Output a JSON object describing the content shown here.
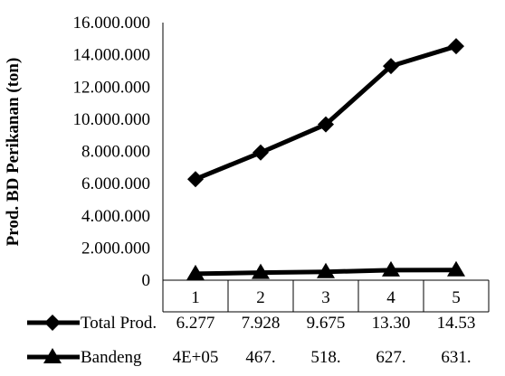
{
  "chart_data": {
    "type": "line",
    "title": "",
    "xlabel": "",
    "ylabel": "Prod. BD Perikanan (ton)",
    "ylim": [
      0,
      16000000
    ],
    "y_tick_labels": [
      "0",
      "2.000.000",
      "4.000.000",
      "6.000.000",
      "8.000.000",
      "10.000.000",
      "12.000.000",
      "14.000.000",
      "16.000.000"
    ],
    "y_tick_values": [
      0,
      2000000,
      4000000,
      6000000,
      8000000,
      10000000,
      12000000,
      14000000,
      16000000
    ],
    "categories": [
      "1",
      "2",
      "3",
      "4",
      "5"
    ],
    "grid": false,
    "legend_placement": "data table below",
    "series": [
      {
        "name": "Total Prod.",
        "marker": "diamond",
        "color": "#000000",
        "values": [
          6277000,
          7928000,
          9675000,
          13300000,
          14530000
        ],
        "table_labels": [
          "6.277",
          "7.928",
          "9.675",
          "13.30",
          "14.53"
        ]
      },
      {
        "name": "Bandeng",
        "marker": "triangle",
        "color": "#000000",
        "values": [
          400000,
          467000,
          518000,
          627000,
          631000
        ],
        "table_labels": [
          "4E+05",
          "467.",
          "518.",
          "627.",
          "631."
        ]
      }
    ]
  }
}
